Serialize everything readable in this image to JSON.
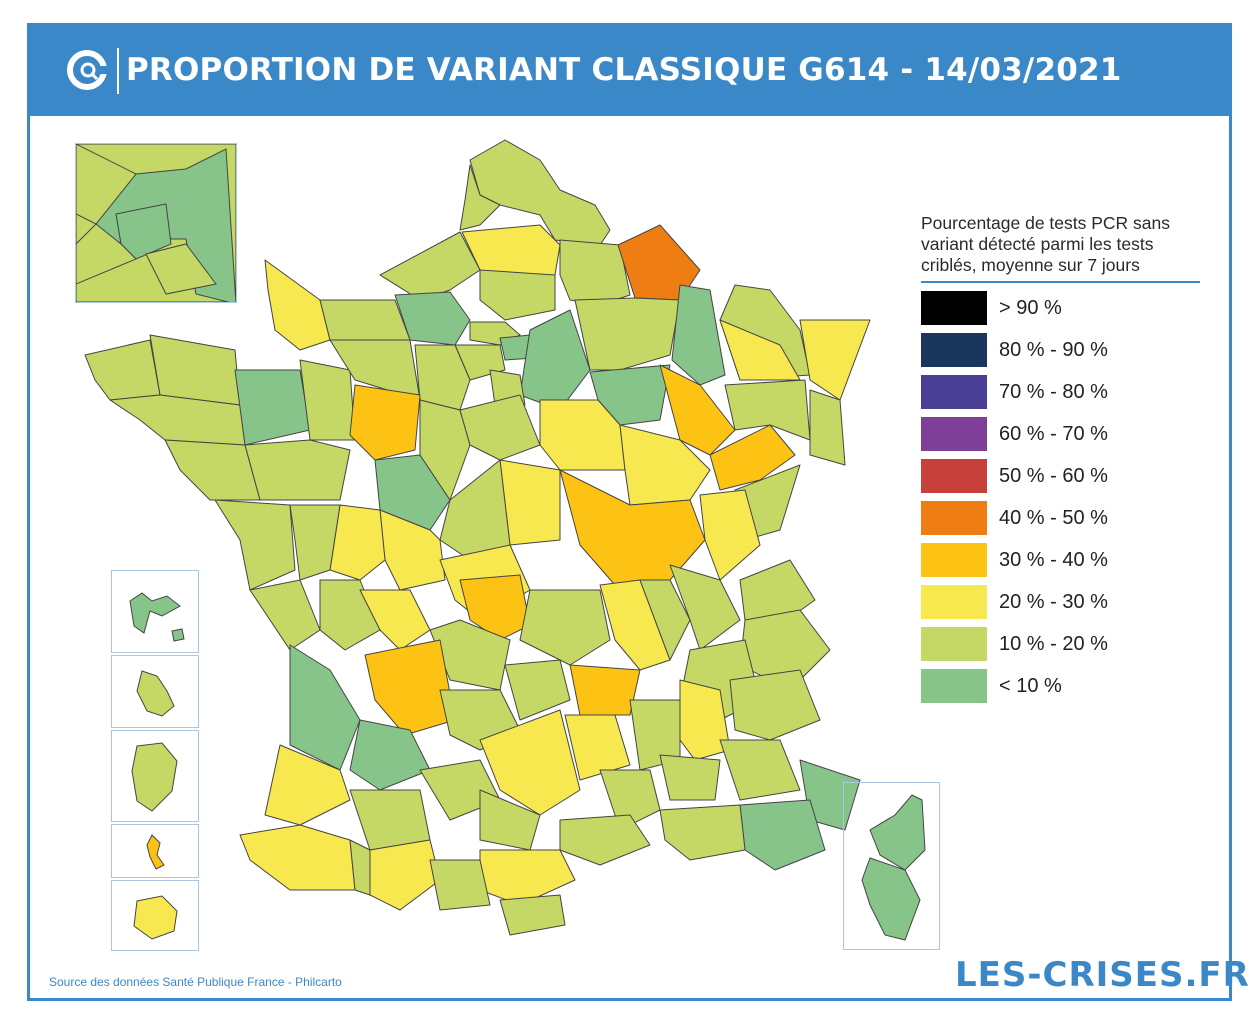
{
  "header": {
    "title": "PROPORTION DE VARIANT CLASSIQUE G614 - 14/03/2021",
    "logo_icon": "les-crises-logo-icon"
  },
  "legend": {
    "title": "Pourcentage de tests PCR sans variant détecté parmi les tests criblés, moyenne sur 7 jours",
    "items": [
      {
        "label": "> 90 %",
        "color": "#000000"
      },
      {
        "label": "80 % - 90 %",
        "color": "#1b365d"
      },
      {
        "label": "70 % - 80 %",
        "color": "#4a3f96"
      },
      {
        "label": "60 % - 70 %",
        "color": "#7d3f98"
      },
      {
        "label": "50 % - 60 %",
        "color": "#c8403a"
      },
      {
        "label": "40 % - 50 %",
        "color": "#ee7d14"
      },
      {
        "label": "30 % - 40 %",
        "color": "#fcc314"
      },
      {
        "label": "20 % - 30 %",
        "color": "#f8e850"
      },
      {
        "label": "10 % - 20 %",
        "color": "#c5d866"
      },
      {
        "label": "< 10 %",
        "color": "#86c489"
      }
    ]
  },
  "footer": {
    "source": "Source des données Santé Publique France - Philcarto",
    "brand": "LES-CRISES.FR"
  }
}
